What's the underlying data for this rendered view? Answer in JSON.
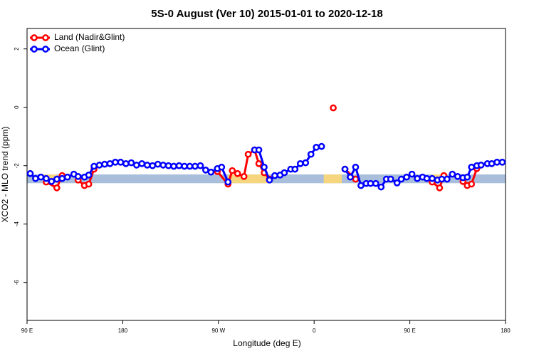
{
  "chart_data": {
    "type": "line",
    "title": "5S-0 August (Ver 10)   2015-01-01 to 2020-12-18",
    "x_label": "Longitude (deg E)",
    "y_label": "XCO2 - MLO trend (ppm)",
    "xlim": [
      90,
      540
    ],
    "ylim": [
      -7.3,
      2.7
    ],
    "xticks": [
      {
        "value": 90,
        "label": "90 E"
      },
      {
        "value": 180,
        "label": "180"
      },
      {
        "value": 270,
        "label": "90 W"
      },
      {
        "value": 360,
        "label": "0"
      },
      {
        "value": 450,
        "label": "90 E"
      },
      {
        "value": 540,
        "label": "180"
      }
    ],
    "yticks": [
      2,
      0,
      -2,
      -4,
      -6
    ],
    "legend": "top-left",
    "bands": [
      {
        "color": "#a8bedb",
        "x": [
          90,
          540
        ],
        "y": [
          -2.6,
          -2.3
        ]
      },
      {
        "color": "#f5d57e",
        "x": [
          105,
          118
        ],
        "y": [
          -2.6,
          -2.3
        ]
      },
      {
        "color": "#f5d57e",
        "x": [
          279,
          318
        ],
        "y": [
          -2.6,
          -2.3
        ]
      },
      {
        "color": "#f5d57e",
        "x": [
          369,
          386
        ],
        "y": [
          -2.6,
          -2.3
        ]
      },
      {
        "color": "#f5d57e",
        "x": [
          471,
          480
        ],
        "y": [
          -2.6,
          -2.3
        ]
      }
    ],
    "series": [
      {
        "name": "Land (Nadir&Glint)",
        "color": "#ff0000",
        "x": [
          108,
          118,
          123,
          130,
          138,
          144,
          148,
          153,
          200,
          269,
          279,
          283,
          288,
          294,
          298,
          304,
          308,
          313,
          318,
          350,
          378,
          385,
          389,
          399,
          440,
          471,
          478,
          482,
          490,
          500,
          504,
          508,
          513
        ],
        "values": [
          -2.56,
          -2.76,
          -2.34,
          null,
          -2.49,
          -2.68,
          -2.63,
          -2.12,
          null,
          -2.2,
          -2.63,
          -2.17,
          -2.27,
          -2.37,
          -1.61,
          -1.46,
          -1.93,
          -2.24,
          -2.46,
          null,
          -0.02,
          null,
          -2.12,
          -2.46,
          null,
          -2.56,
          -2.76,
          -2.34,
          null,
          -2.54,
          -2.68,
          -2.63,
          -2.1
        ]
      },
      {
        "name": "Ocean (Glint)",
        "color": "#0000ff",
        "x": [
          93,
          98,
          103,
          108,
          113,
          118,
          123,
          128,
          134,
          138,
          144,
          148,
          153,
          158,
          163,
          168,
          173,
          178,
          183,
          188,
          193,
          198,
          203,
          208,
          213,
          218,
          223,
          228,
          233,
          238,
          243,
          248,
          253,
          258,
          263,
          269,
          273,
          279,
          293,
          304,
          308,
          313,
          318,
          323,
          328,
          332,
          338,
          342,
          347,
          352,
          357,
          362,
          367,
          378,
          389,
          394,
          399,
          404,
          409,
          413,
          418,
          423,
          428,
          432,
          438,
          442,
          447,
          452,
          457,
          462,
          466,
          471,
          476,
          480,
          485,
          490,
          495,
          500,
          504,
          508,
          513,
          517,
          523,
          527,
          532,
          537
        ],
        "values": [
          -2.27,
          -2.44,
          -2.39,
          -2.44,
          -2.54,
          -2.46,
          -2.44,
          -2.39,
          -2.29,
          -2.37,
          -2.39,
          -2.32,
          -2.02,
          -1.98,
          -1.95,
          -1.93,
          -1.88,
          -1.88,
          -1.93,
          -1.9,
          -1.98,
          -1.93,
          -1.98,
          -2.0,
          -1.95,
          -1.98,
          -2.0,
          -2.02,
          -2.0,
          -2.02,
          -2.02,
          -2.02,
          -2.0,
          -2.15,
          -2.22,
          -2.1,
          -2.05,
          -2.56,
          null,
          -1.46,
          -1.46,
          -2.05,
          -2.49,
          -2.34,
          -2.32,
          -2.24,
          -2.12,
          -2.12,
          -1.93,
          -1.9,
          -1.61,
          -1.37,
          -1.34,
          null,
          -2.12,
          -2.39,
          -2.05,
          -2.68,
          -2.61,
          -2.61,
          -2.61,
          -2.73,
          -2.46,
          -2.46,
          -2.59,
          -2.46,
          -2.39,
          -2.29,
          -2.44,
          -2.39,
          -2.44,
          -2.44,
          -2.49,
          -2.46,
          -2.46,
          -2.29,
          -2.37,
          -2.41,
          -2.39,
          -2.05,
          -2.0,
          -1.98,
          -1.93,
          -1.93,
          -1.88,
          -1.88
        ]
      }
    ]
  }
}
